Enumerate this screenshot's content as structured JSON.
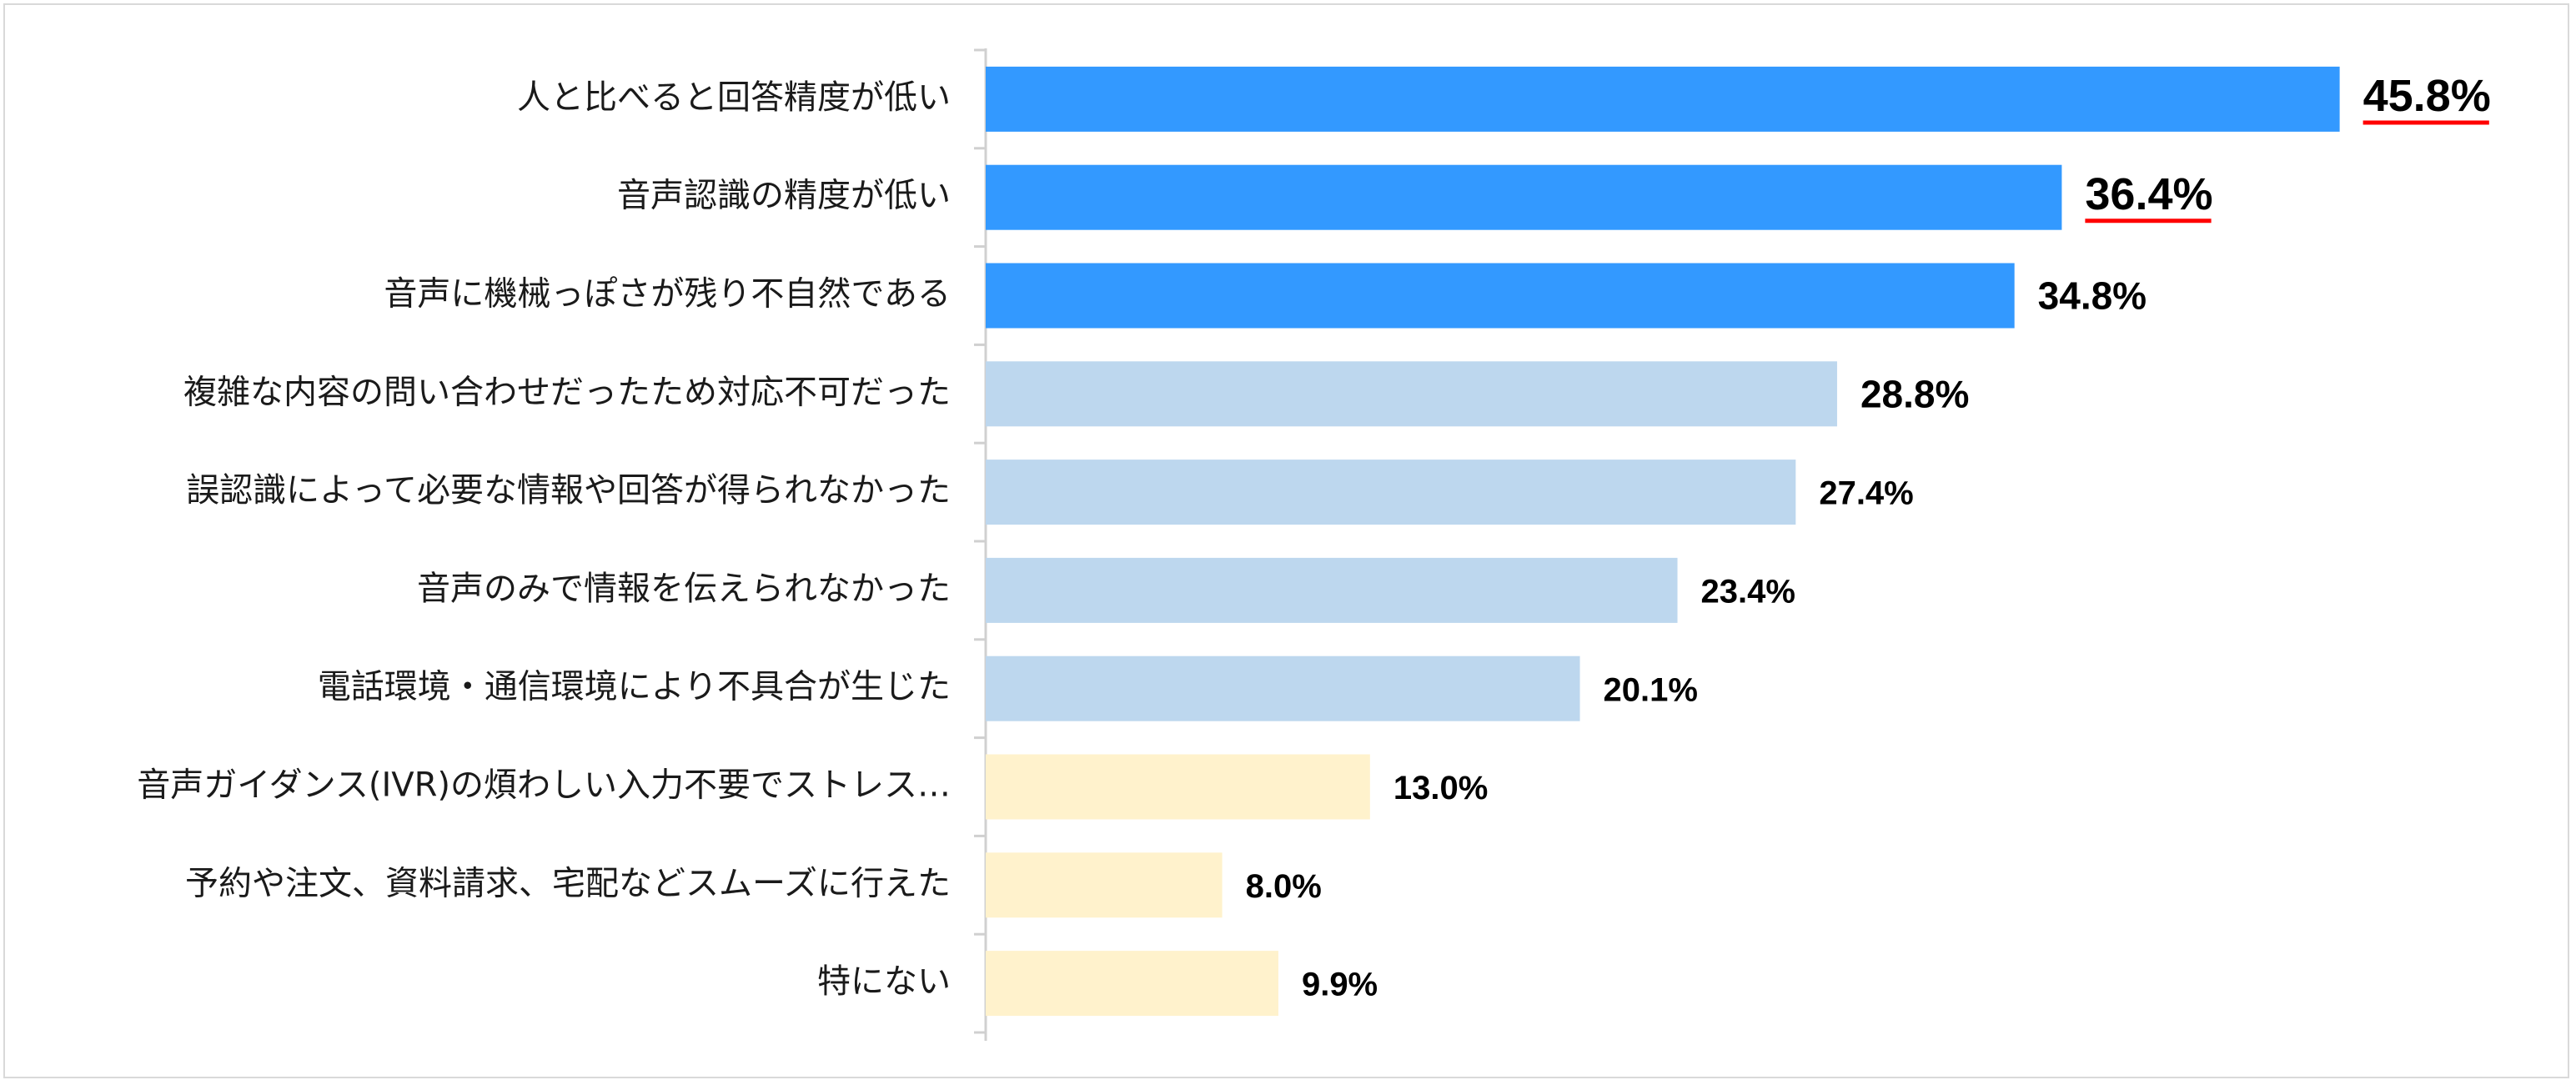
{
  "chart_data": {
    "type": "bar",
    "orientation": "horizontal",
    "categories": [
      "人と比べると回答精度が低い",
      "音声認識の精度が低い",
      "音声に機械っぽさが残り不自然である",
      "複雑な内容の問い合わせだったため対応不可だった",
      "誤認識によって必要な情報や回答が得られなかった",
      "音声のみで情報を伝えられなかった",
      "電話環境・通信環境により不具合が生じた",
      "音声ガイダンス(IVR)の煩わしい入力不要でストレス…",
      "予約や注文、資料請求、宅配などスムーズに行えた",
      "特にない"
    ],
    "values": [
      45.8,
      36.4,
      34.8,
      28.8,
      27.4,
      23.4,
      20.1,
      13.0,
      8.0,
      9.9
    ],
    "value_labels": [
      "45.8%",
      "36.4%",
      "34.8%",
      "28.8%",
      "27.4%",
      "23.4%",
      "20.1%",
      "13.0%",
      "8.0%",
      "9.9%"
    ],
    "bar_colors": [
      "#3399ff",
      "#3399ff",
      "#3399ff",
      "#bdd7ee",
      "#bdd7ee",
      "#bdd7ee",
      "#bdd7ee",
      "#fff2cc",
      "#fff2cc",
      "#fff2cc"
    ],
    "label_styles": [
      "highlight",
      "highlight",
      "large",
      "large",
      "normal",
      "normal",
      "normal",
      "normal",
      "normal",
      "normal"
    ],
    "highlight_color": "#ff0000",
    "xlim": [
      0,
      50
    ],
    "grid": false,
    "legend": "none"
  }
}
